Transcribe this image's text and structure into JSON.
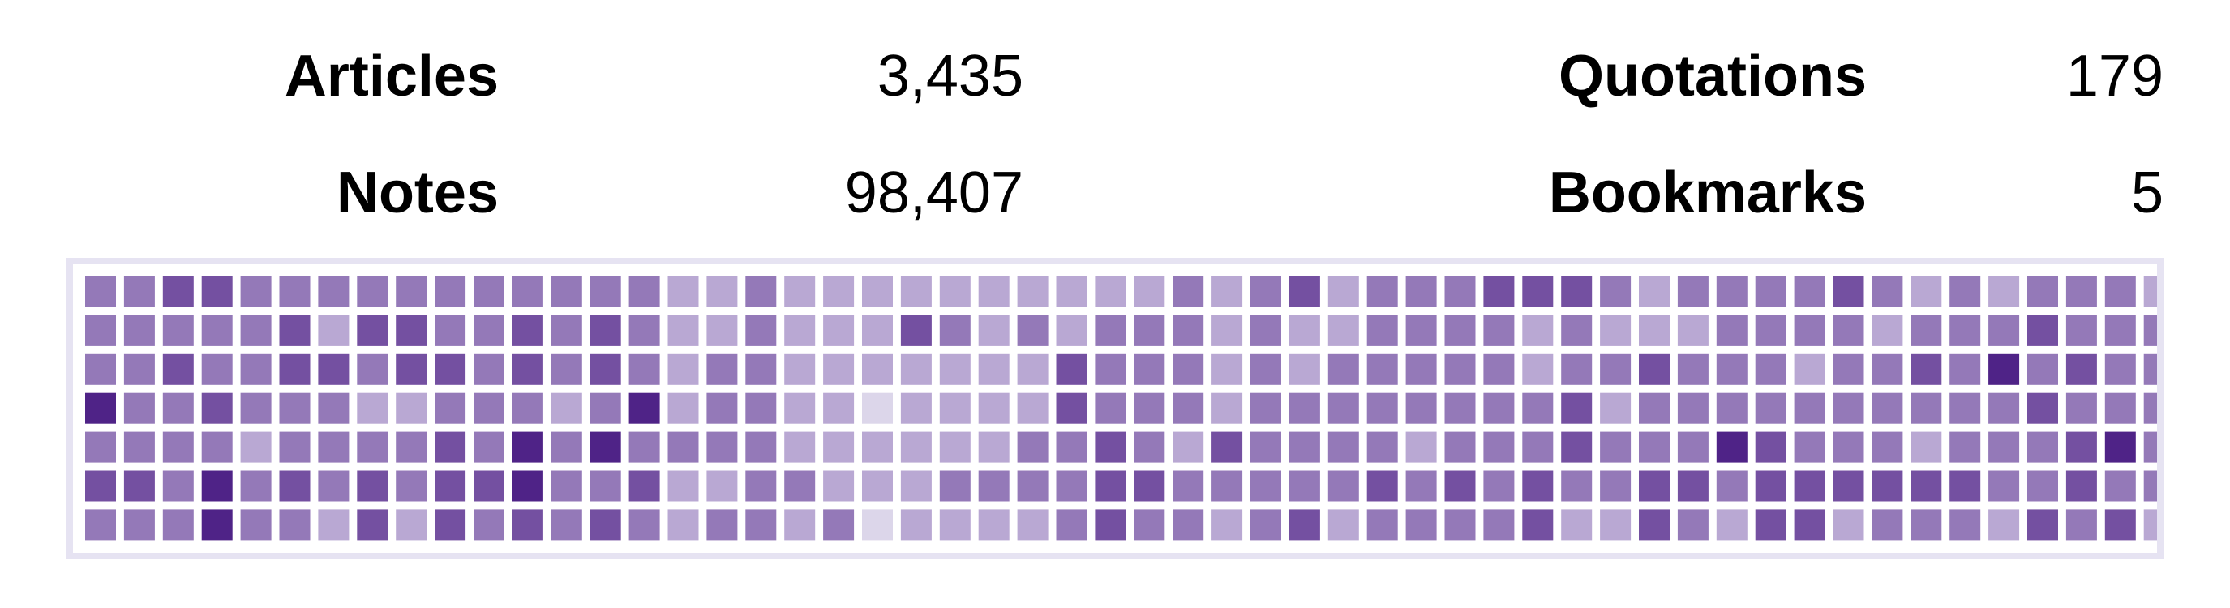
{
  "stats": [
    {
      "label": "Articles",
      "value": "3,435"
    },
    {
      "label": "Quotations",
      "value": "179"
    },
    {
      "label": "Notes",
      "value": "98,407"
    },
    {
      "label": "Bookmarks",
      "value": "5"
    }
  ],
  "colors": {
    "levels": [
      "#dcd6ea",
      "#b9a8d3",
      "#9479b8",
      "#7450a1",
      "#4f2387"
    ],
    "border": "#e6e3f2"
  },
  "heatmap": {
    "rows": 7,
    "columns": 54,
    "levels": [
      [
        2,
        2,
        3,
        3,
        2,
        2,
        2,
        2,
        2,
        2,
        2,
        2,
        2,
        2,
        2,
        1,
        1,
        2,
        1,
        1,
        1,
        1,
        1,
        1,
        1,
        1,
        1,
        1,
        2,
        1,
        2,
        3,
        1,
        2,
        2,
        2,
        3,
        3,
        3,
        2,
        1,
        2,
        2,
        2,
        2,
        3,
        2,
        1,
        2,
        1,
        2,
        2,
        2,
        1
      ],
      [
        2,
        2,
        2,
        2,
        2,
        3,
        1,
        3,
        3,
        2,
        2,
        3,
        2,
        3,
        2,
        1,
        1,
        2,
        1,
        1,
        1,
        3,
        2,
        1,
        2,
        1,
        2,
        2,
        2,
        1,
        2,
        1,
        1,
        2,
        2,
        2,
        2,
        1,
        2,
        1,
        1,
        1,
        2,
        2,
        2,
        2,
        1,
        2,
        2,
        2,
        3,
        2,
        2,
        2
      ],
      [
        2,
        2,
        3,
        2,
        2,
        3,
        3,
        2,
        3,
        3,
        2,
        3,
        2,
        3,
        2,
        1,
        2,
        2,
        1,
        1,
        1,
        1,
        1,
        1,
        1,
        3,
        2,
        2,
        2,
        1,
        2,
        1,
        2,
        2,
        2,
        2,
        2,
        1,
        2,
        2,
        3,
        2,
        2,
        2,
        1,
        2,
        2,
        3,
        2,
        4,
        2,
        3,
        2,
        2
      ],
      [
        4,
        2,
        2,
        3,
        2,
        2,
        2,
        1,
        1,
        2,
        2,
        2,
        1,
        2,
        4,
        1,
        2,
        2,
        1,
        1,
        0,
        1,
        1,
        1,
        1,
        3,
        2,
        2,
        2,
        1,
        2,
        2,
        2,
        2,
        2,
        2,
        2,
        2,
        3,
        1,
        2,
        2,
        2,
        2,
        2,
        2,
        2,
        2,
        2,
        2,
        3,
        2,
        2,
        2
      ],
      [
        2,
        2,
        2,
        2,
        1,
        2,
        2,
        2,
        2,
        3,
        2,
        4,
        2,
        4,
        2,
        2,
        2,
        2,
        1,
        1,
        1,
        1,
        1,
        1,
        2,
        2,
        3,
        2,
        1,
        3,
        2,
        2,
        2,
        2,
        1,
        2,
        2,
        2,
        3,
        2,
        2,
        2,
        4,
        3,
        2,
        2,
        2,
        1,
        2,
        2,
        2,
        3,
        4,
        2
      ],
      [
        3,
        3,
        2,
        4,
        2,
        3,
        2,
        3,
        2,
        3,
        3,
        4,
        2,
        2,
        3,
        1,
        1,
        2,
        2,
        1,
        1,
        1,
        2,
        2,
        2,
        2,
        3,
        3,
        2,
        2,
        2,
        2,
        2,
        3,
        2,
        3,
        2,
        3,
        2,
        2,
        3,
        3,
        2,
        3,
        3,
        3,
        3,
        3,
        3,
        2,
        2,
        3,
        2,
        2
      ],
      [
        2,
        2,
        2,
        4,
        2,
        2,
        1,
        3,
        1,
        3,
        2,
        3,
        2,
        3,
        2,
        1,
        2,
        2,
        1,
        2,
        0,
        1,
        1,
        1,
        1,
        2,
        3,
        2,
        2,
        1,
        2,
        3,
        1,
        2,
        2,
        2,
        2,
        3,
        1,
        1,
        3,
        2,
        1,
        3,
        3,
        1,
        2,
        2,
        2,
        1,
        3,
        2,
        3,
        1
      ]
    ]
  }
}
